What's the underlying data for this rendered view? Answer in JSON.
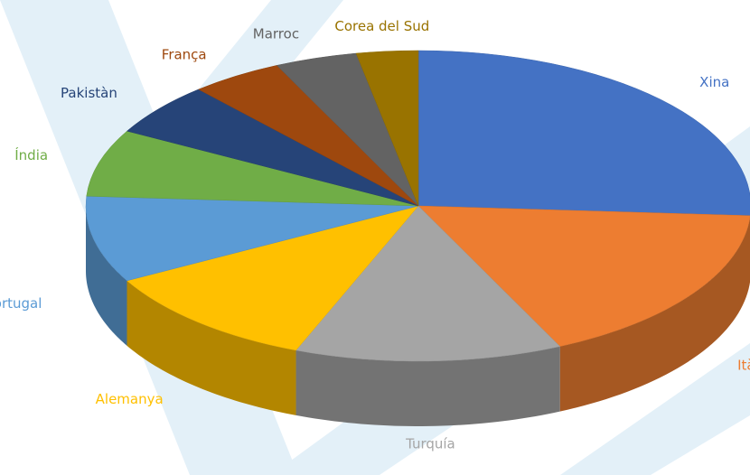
{
  "chart_data": {
    "type": "pie3d",
    "categories": [
      "Xina",
      "Itàlia",
      "Turquía",
      "Alemanya",
      "Portugal",
      "Índia",
      "Pakistàn",
      "França",
      "Marroc",
      "Corea del Sud"
    ],
    "values": [
      26,
      17,
      13,
      11,
      9,
      7,
      5.5,
      4.5,
      4,
      3
    ],
    "colors": [
      "#4472c4",
      "#ed7d31",
      "#a5a5a5",
      "#ffc000",
      "#5b9bd5",
      "#70ad47",
      "#264478",
      "#9e480e",
      "#636363",
      "#997300"
    ]
  }
}
